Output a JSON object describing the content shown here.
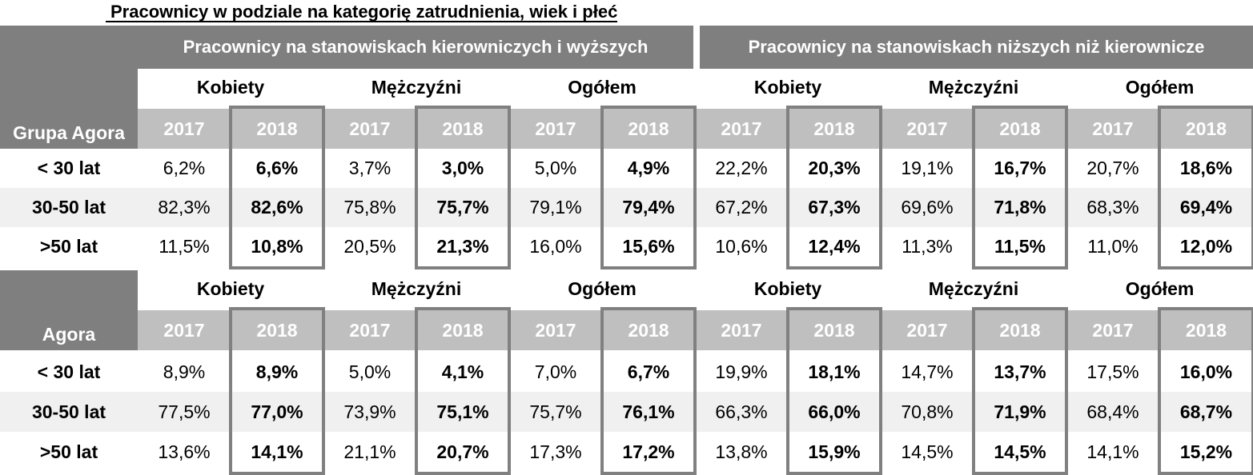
{
  "title": "Pracownicy w podziale na kategorię zatrudnienia, wiek i płeć",
  "group_headers": [
    "Pracownicy na stanowiskach kierowniczych i wyższych",
    "Pracownicy na stanowiskach niższych niż kierownicze"
  ],
  "genders": [
    "Kobiety",
    "Mężczyźni",
    "Ogółem",
    "Kobiety",
    "Mężczyźni",
    "Ogółem"
  ],
  "years": [
    "2017",
    "2018"
  ],
  "sections": [
    {
      "label": "Grupa Agora",
      "rows": [
        {
          "age": "< 30 lat",
          "values": [
            "6,2%",
            "6,6%",
            "3,7%",
            "3,0%",
            "5,0%",
            "4,9%",
            "22,2%",
            "20,3%",
            "19,1%",
            "16,7%",
            "20,7%",
            "18,6%"
          ]
        },
        {
          "age": "30-50 lat",
          "values": [
            "82,3%",
            "82,6%",
            "75,8%",
            "75,7%",
            "79,1%",
            "79,4%",
            "67,2%",
            "67,3%",
            "69,6%",
            "71,8%",
            "68,3%",
            "69,4%"
          ]
        },
        {
          "age": ">50 lat",
          "values": [
            "11,5%",
            "10,8%",
            "20,5%",
            "21,3%",
            "16,0%",
            "15,6%",
            "10,6%",
            "12,4%",
            "11,3%",
            "11,5%",
            "11,0%",
            "12,0%"
          ]
        }
      ]
    },
    {
      "label": "Agora",
      "rows": [
        {
          "age": "< 30 lat",
          "values": [
            "8,9%",
            "8,9%",
            "5,0%",
            "4,1%",
            "7,0%",
            "6,7%",
            "19,9%",
            "18,1%",
            "14,7%",
            "13,7%",
            "17,5%",
            "16,0%"
          ]
        },
        {
          "age": "30-50 lat",
          "values": [
            "77,5%",
            "77,0%",
            "73,9%",
            "75,1%",
            "75,7%",
            "76,1%",
            "66,3%",
            "66,0%",
            "70,8%",
            "71,9%",
            "68,4%",
            "68,7%"
          ]
        },
        {
          "age": ">50 lat",
          "values": [
            "13,6%",
            "14,1%",
            "21,1%",
            "20,7%",
            "17,3%",
            "17,2%",
            "13,8%",
            "15,9%",
            "14,5%",
            "14,5%",
            "14,1%",
            "15,2%"
          ]
        }
      ]
    }
  ],
  "colors": {
    "header_dark": "#7f7f7f",
    "header_year": "#bfbfbf",
    "row_shade": "#f0f0f0",
    "box_border": "#808080"
  }
}
